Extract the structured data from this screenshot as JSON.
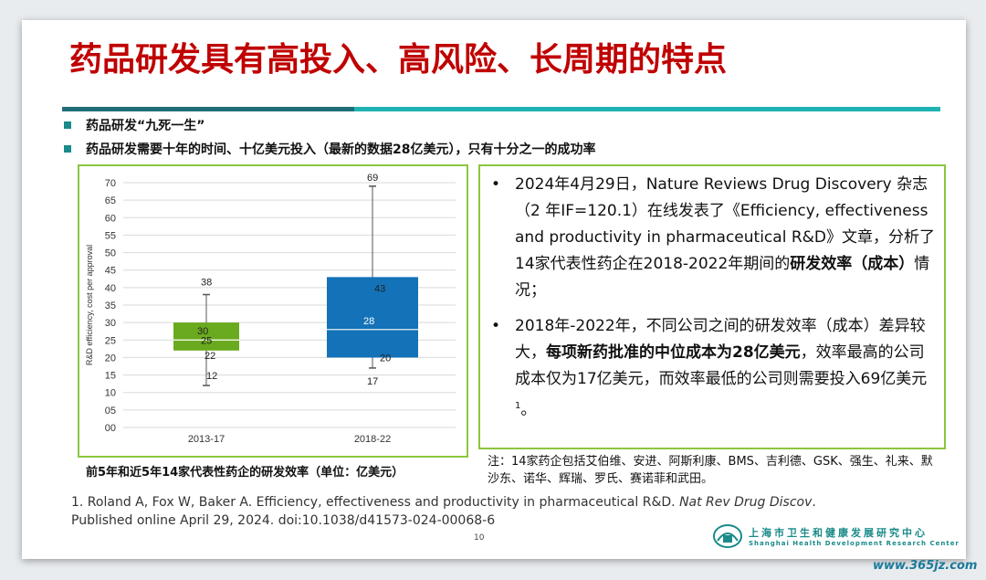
{
  "slide": {
    "title": "药品研发具有高投入、高风险、长周期的特点",
    "bullets": [
      "药品研发“九死一生”",
      "药品研发需要十年的时间、十亿美元投入（最新的数据28亿美元），只有十分之一的成功率"
    ],
    "caption": "前5年和近5年14家代表性药企的研发效率（单位：亿美元）",
    "note": "注：14家药企包括艾伯维、安进、阿斯利康、BMS、吉利德、GSK、强生、礼来、默沙东、诺华、辉瑞、罗氏、赛诺菲和武田。",
    "reference": {
      "plain1": "1. Roland A, Fox W, Baker A. Efficiency, effectiveness and productivity in pharmaceutical R&D. ",
      "italic": "Nat Rev Drug Discov",
      "plain2": ". Published online April 29, 2024. doi:10.1038/d41573-024-00068-6"
    },
    "page_number": "10",
    "logo": {
      "cn": "上海市卫生和健康发展研究中心",
      "en": "Shanghai Health Development Research Center"
    },
    "watermark": "www.365jz.com",
    "textbox": {
      "item1_plain": "2024年4月29日，Nature Reviews Drug Discovery 杂志（2 年IF=120.1）在线发表了《Efficiency, effectiveness and productivity in pharmaceutical R&D》文章，分析了14家代表性药企在2018-2022年期间的",
      "item1_bold": "研发效率（成本）",
      "item1_tail": "情况；",
      "item2_plain": "2018年-2022年，不同公司之间的研发效率（成本）差异较大，",
      "item2_bold": "每项新药批准的中位成本为28亿美元",
      "item2_tail": "，效率最高的公司成本仅为17亿美元，而效率最低的公司则需要投入69亿美元",
      "item2_sup": "1",
      "item2_end": "。",
      "bullet_char": "•"
    }
  },
  "chart_data": {
    "type": "boxplot",
    "ylabel": "R&D efficiency, cost per approval",
    "ylim": [
      0,
      70
    ],
    "yticks": [
      "00",
      "05",
      "10",
      "15",
      "20",
      "25",
      "30",
      "35",
      "40",
      "45",
      "50",
      "55",
      "60",
      "65",
      "70"
    ],
    "categories": [
      "2013-17",
      "2018-22"
    ],
    "boxes": [
      {
        "category": "2013-17",
        "min": 12,
        "q1": 22,
        "median": 25,
        "q3": 30,
        "max": 38,
        "color": "#6aaa1e",
        "labels": [
          "38",
          "30",
          "25",
          "22",
          "12"
        ]
      },
      {
        "category": "2018-22",
        "min": 17,
        "q1": 20,
        "median": 28,
        "q3": 43,
        "max": 69,
        "color": "#1372b8",
        "labels": [
          "69",
          "43",
          "28",
          "20",
          "17"
        ]
      }
    ],
    "grid": true
  }
}
